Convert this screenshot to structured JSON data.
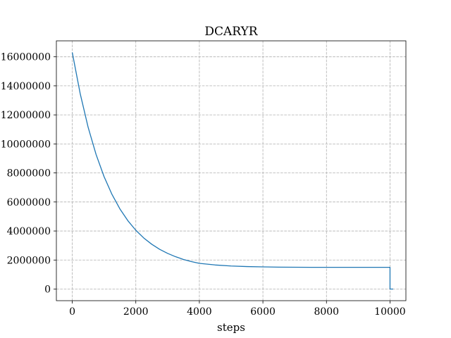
{
  "chart_data": {
    "type": "line",
    "title": "DCARYR",
    "xlabel": "steps",
    "ylabel": "",
    "xlim": [
      -500,
      10500
    ],
    "ylim": [
      -800000,
      17100000
    ],
    "grid": true,
    "xticks": [
      0,
      2000,
      4000,
      6000,
      8000,
      10000
    ],
    "yticks": [
      0,
      2000000,
      4000000,
      6000000,
      8000000,
      10000000,
      12000000,
      14000000,
      16000000
    ],
    "xtick_labels": [
      "0",
      "2000",
      "4000",
      "6000",
      "8000",
      "10000"
    ],
    "ytick_labels": [
      "0",
      "2000000",
      "4000000",
      "6000000",
      "8000000",
      "10000000",
      "12000000",
      "14000000",
      "16000000"
    ],
    "series": [
      {
        "color": "#1f77b4",
        "x": [
          0,
          250,
          500,
          750,
          1000,
          1250,
          1500,
          1750,
          2000,
          2250,
          2500,
          2750,
          3000,
          3250,
          3500,
          3750,
          4000,
          4500,
          5000,
          5500,
          6000,
          6500,
          7000,
          7500,
          8000,
          8500,
          9000,
          9500,
          10000,
          10000,
          10100
        ],
        "y": [
          16300000,
          13460000,
          11140000,
          9270000,
          7750000,
          6520000,
          5520000,
          4710000,
          4050000,
          3520000,
          3090000,
          2740000,
          2460000,
          2230000,
          2040000,
          1890000,
          1770000,
          1660000,
          1590000,
          1550000,
          1530000,
          1510000,
          1505000,
          1500000,
          1500000,
          1500000,
          1500000,
          1500000,
          1500000,
          0,
          0
        ]
      }
    ]
  }
}
